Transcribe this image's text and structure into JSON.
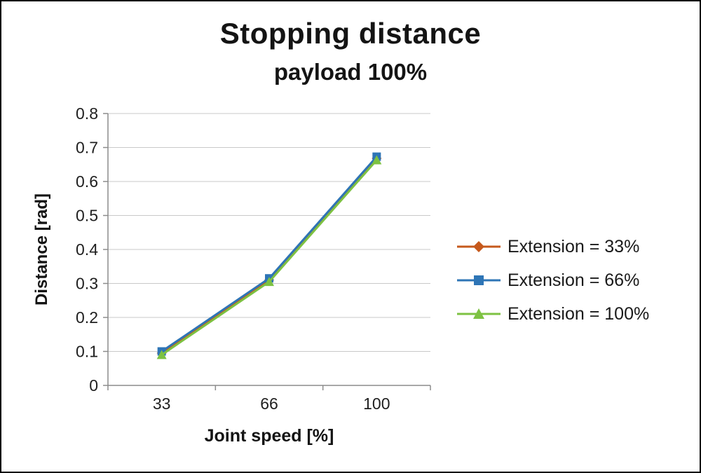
{
  "chart_data": {
    "type": "line",
    "title": "Stopping distance",
    "subtitle": "payload 100%",
    "xlabel": "Joint speed [%]",
    "ylabel": "Distance [rad]",
    "categories": [
      "33",
      "66",
      "100"
    ],
    "series": [
      {
        "name": "Extension = 33%",
        "marker": "diamond",
        "color": "#C6591C",
        "values": [
          0.095,
          0.31,
          0.668
        ]
      },
      {
        "name": "Extension = 66%",
        "marker": "square",
        "color": "#2E75B6",
        "values": [
          0.1,
          0.315,
          0.673
        ]
      },
      {
        "name": "Extension = 100%",
        "marker": "triangle",
        "color": "#7DC242",
        "values": [
          0.09,
          0.305,
          0.663
        ]
      }
    ],
    "ylim": [
      0,
      0.8
    ],
    "yticks": [
      "0",
      "0.1",
      "0.2",
      "0.3",
      "0.4",
      "0.5",
      "0.6",
      "0.7",
      "0.8"
    ],
    "grid": true,
    "legend_position": "right"
  }
}
